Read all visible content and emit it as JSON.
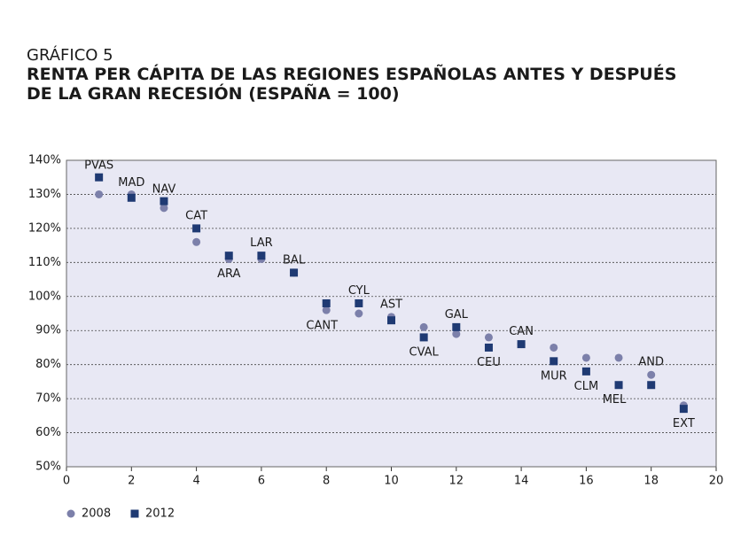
{
  "chart_data": {
    "type": "scatter",
    "label": "GRÁFICO 5",
    "title": "RENTA PER CÁPITA DE LAS REGIONES ESPAÑOLAS ANTES Y DESPUÉS DE LA GRAN RECESIÓN (ESPAÑA = 100)",
    "x": [
      1,
      2,
      3,
      4,
      5,
      6,
      7,
      8,
      9,
      10,
      11,
      12,
      13,
      14,
      15,
      16,
      17,
      18,
      19
    ],
    "point_labels": [
      "PVAS",
      "MAD",
      "NAV",
      "CAT",
      "ARA",
      "LAR",
      "BAL",
      "CANT",
      "CYL",
      "AST",
      "CVAL",
      "GAL",
      "CEU",
      "CAN",
      "MUR",
      "CLM",
      "MEL",
      "AND",
      "EXT"
    ],
    "series": [
      {
        "name": "2008",
        "color": "#7c80aa",
        "marker": "circle",
        "values": [
          130,
          130,
          126,
          116,
          111,
          111,
          107,
          96,
          95,
          94,
          91,
          89,
          88,
          86,
          85,
          82,
          82,
          77,
          68
        ]
      },
      {
        "name": "2012",
        "color": "#1f3a73",
        "marker": "square",
        "values": [
          135,
          129,
          128,
          120,
          112,
          112,
          107,
          98,
          98,
          93,
          88,
          91,
          85,
          86,
          81,
          78,
          74,
          74,
          67
        ]
      }
    ],
    "xlim": [
      0,
      20
    ],
    "xticks": [
      0,
      2,
      4,
      6,
      8,
      10,
      12,
      14,
      16,
      18,
      20
    ],
    "ylim": [
      50,
      140
    ],
    "yticks": [
      {
        "value": 50,
        "label": "50%"
      },
      {
        "value": 60,
        "label": "60%"
      },
      {
        "value": 70,
        "label": "70%"
      },
      {
        "value": 80,
        "label": "80%"
      },
      {
        "value": 90,
        "label": "90%"
      },
      {
        "value": 100,
        "label": "100%"
      },
      {
        "value": 110,
        "label": "110%"
      },
      {
        "value": 120,
        "label": "120%"
      },
      {
        "value": 130,
        "label": "130%"
      },
      {
        "value": 140,
        "label": "140%"
      }
    ],
    "grid": true,
    "legend": "bottom-left"
  }
}
